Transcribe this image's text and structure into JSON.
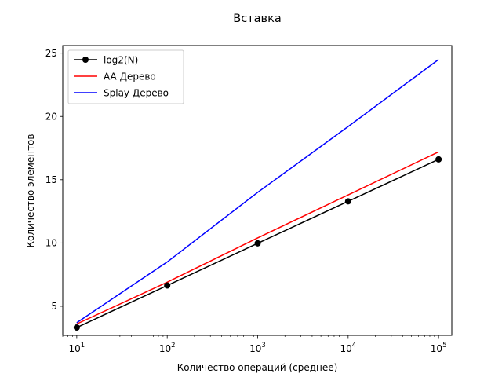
{
  "chart_data": {
    "type": "line",
    "title": "Вставка",
    "xlabel": "Количество операций (среднее)",
    "ylabel": "Количество элементов",
    "xscale": "log",
    "xlim": [
      7,
      140000
    ],
    "ylim": [
      2.7,
      25.6
    ],
    "x": [
      10,
      100,
      1000,
      10000,
      100000
    ],
    "x_ticks": [
      {
        "value": 10,
        "base": "10",
        "exp": "1"
      },
      {
        "value": 100,
        "base": "10",
        "exp": "2"
      },
      {
        "value": 1000,
        "base": "10",
        "exp": "3"
      },
      {
        "value": 10000,
        "base": "10",
        "exp": "4"
      },
      {
        "value": 100000,
        "base": "10",
        "exp": "5"
      }
    ],
    "y_ticks": [
      {
        "value": 5,
        "label": "5"
      },
      {
        "value": 10,
        "label": "10"
      },
      {
        "value": 15,
        "label": "15"
      },
      {
        "value": 20,
        "label": "20"
      },
      {
        "value": 25,
        "label": "25"
      }
    ],
    "grid": false,
    "legend_position": "top-left",
    "series": [
      {
        "name": "log2(N)",
        "color": "#000000",
        "marker": "circle",
        "values": [
          3.32,
          6.64,
          9.97,
          13.29,
          16.61
        ]
      },
      {
        "name": "AA Дерево",
        "color": "#ff0000",
        "marker": "none",
        "values": [
          3.6,
          6.9,
          10.4,
          13.8,
          17.2
        ]
      },
      {
        "name": "Splay Дерево",
        "color": "#0000ff",
        "marker": "none",
        "values": [
          3.7,
          8.5,
          14.0,
          19.2,
          24.5
        ]
      }
    ]
  }
}
